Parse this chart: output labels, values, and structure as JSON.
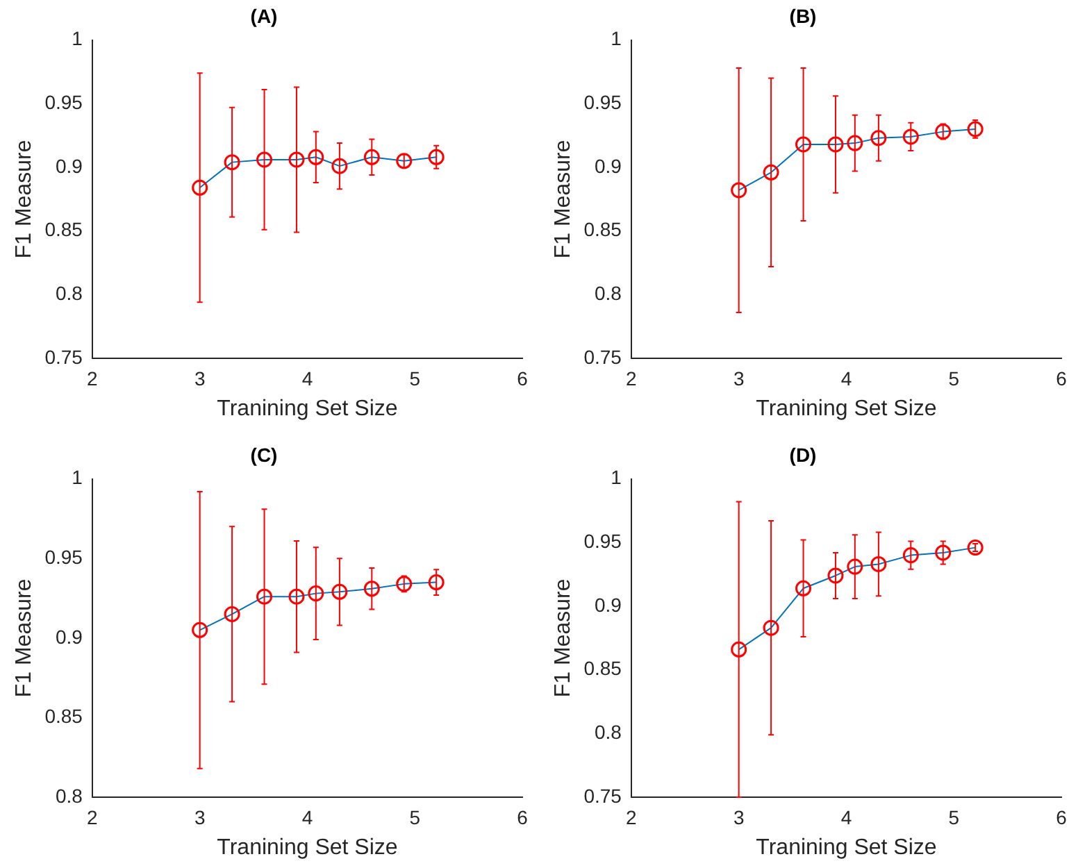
{
  "chart_data": [
    {
      "type": "line",
      "title": "(A)",
      "xlabel": "Tranining Set Size",
      "ylabel": "F1 Measure",
      "xlim": [
        2,
        6
      ],
      "xticks": [
        2,
        3,
        4,
        5,
        6
      ],
      "ylim": [
        0.75,
        1
      ],
      "yticks": [
        0.75,
        0.8,
        0.85,
        0.9,
        0.95,
        1
      ],
      "marker": "circle",
      "x": [
        3,
        3.3,
        3.6,
        3.9,
        4.08,
        4.3,
        4.6,
        4.9,
        5.2
      ],
      "series": [
        {
          "color": "#0072bd",
          "colors": [
            "#ff0000",
            "#ff0000",
            "#ff0000",
            "#ff0000",
            "#ff0000",
            "#ff0000",
            "#ff0000",
            "#ff0000",
            "#ff0000"
          ],
          "values": [
            0.884,
            0.904,
            0.906,
            0.906,
            0.908,
            0.901,
            0.908,
            0.905,
            0.908
          ],
          "errors": [
            0.09,
            0.043,
            0.055,
            0.057,
            0.02,
            0.018,
            0.014,
            0.005,
            0.009
          ]
        }
      ]
    },
    {
      "type": "line",
      "title": "(B)",
      "xlabel": "Tranining Set Size",
      "ylabel": "F1 Measure",
      "xlim": [
        2,
        6
      ],
      "xticks": [
        2,
        3,
        4,
        5,
        6
      ],
      "ylim": [
        0.75,
        1
      ],
      "yticks": [
        0.75,
        0.8,
        0.85,
        0.9,
        0.95,
        1
      ],
      "marker": "circle",
      "x": [
        3,
        3.3,
        3.6,
        3.9,
        4.08,
        4.3,
        4.6,
        4.9,
        5.2
      ],
      "series": [
        {
          "color": "#0072bd",
          "colors": [
            "#ff0000",
            "#ff0000",
            "#ff0000",
            "#ff0000",
            "#ff0000",
            "#ff0000",
            "#ff0000",
            "#ff0000",
            "#ff0000"
          ],
          "values": [
            0.882,
            0.896,
            0.918,
            0.918,
            0.919,
            0.923,
            0.924,
            0.928,
            0.93
          ],
          "errors": [
            0.096,
            0.074,
            0.06,
            0.038,
            0.022,
            0.018,
            0.011,
            0.006,
            0.007
          ]
        }
      ]
    },
    {
      "type": "line",
      "title": "(C)",
      "xlabel": "Tranining Set Size",
      "ylabel": "F1 Measure",
      "xlim": [
        2,
        6
      ],
      "xticks": [
        2,
        3,
        4,
        5,
        6
      ],
      "ylim": [
        0.8,
        1
      ],
      "yticks": [
        0.8,
        0.85,
        0.9,
        0.95,
        1
      ],
      "marker": "circle",
      "x": [
        3,
        3.3,
        3.6,
        3.9,
        4.08,
        4.3,
        4.6,
        4.9,
        5.2
      ],
      "series": [
        {
          "color": "#0072bd",
          "colors": [
            "#ff0000",
            "#ff0000",
            "#ff0000",
            "#ff0000",
            "#ff0000",
            "#ff0000",
            "#ff0000",
            "#ff0000",
            "#ff0000"
          ],
          "values": [
            0.905,
            0.915,
            0.926,
            0.926,
            0.928,
            0.929,
            0.931,
            0.934,
            0.935
          ],
          "errors": [
            0.087,
            0.055,
            0.055,
            0.035,
            0.029,
            0.021,
            0.013,
            0.005,
            0.008
          ]
        }
      ]
    },
    {
      "type": "line",
      "title": "(D)",
      "xlabel": "Tranining Set Size",
      "ylabel": "F1 Measure",
      "xlim": [
        2,
        6
      ],
      "xticks": [
        2,
        3,
        4,
        5,
        6
      ],
      "ylim": [
        0.75,
        1
      ],
      "yticks": [
        0.75,
        0.8,
        0.85,
        0.9,
        0.95,
        1
      ],
      "marker": "circle",
      "x": [
        3,
        3.3,
        3.6,
        3.9,
        4.08,
        4.3,
        4.6,
        4.9,
        5.2
      ],
      "series": [
        {
          "color": "#0072bd",
          "colors": [
            "#ff0000",
            "#ff0000",
            "#ff0000",
            "#ff0000",
            "#ff0000",
            "#ff0000",
            "#ff0000",
            "#ff0000",
            "#ff0000"
          ],
          "values": [
            0.866,
            0.883,
            0.914,
            0.924,
            0.931,
            0.933,
            0.94,
            0.942,
            0.946
          ],
          "errors": [
            0.116,
            0.084,
            0.038,
            0.018,
            0.025,
            0.025,
            0.011,
            0.009,
            0.003
          ]
        }
      ]
    }
  ]
}
